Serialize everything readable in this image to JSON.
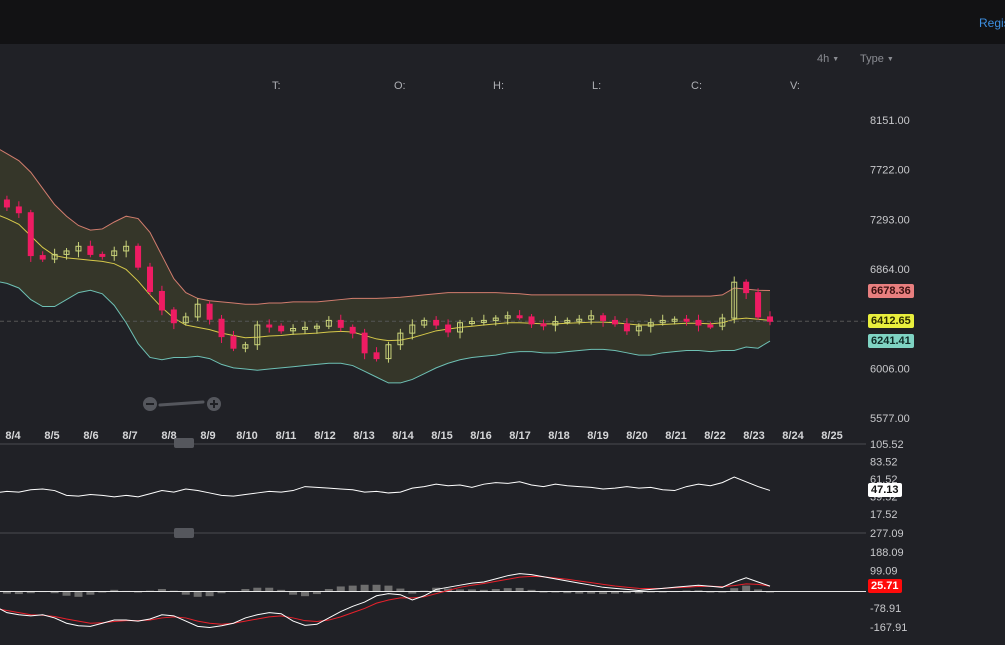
{
  "header": {
    "register_label": "Regis"
  },
  "toolbar": {
    "interval": "4h",
    "type_label": "Type"
  },
  "ohlc": {
    "t": "T:",
    "o": "O:",
    "h": "H:",
    "l": "L:",
    "c": "C:",
    "v": "V:"
  },
  "colors": {
    "up": "#c9d37a",
    "down": "#ee1c63",
    "band_fill": "#3a3a2a",
    "upper_band": "#d27d6e",
    "lower_band": "#6ec0b4",
    "mid_band": "#d6c94a",
    "rsi_line": "#ffffff",
    "macd_line": "#ffffff",
    "signal_line": "#e8212b",
    "histogram": "#6e6e6e"
  },
  "chart_data": [
    {
      "type": "candlestick",
      "x_labels": [
        "8/4",
        "8/5",
        "8/6",
        "8/7",
        "8/8",
        "8/9",
        "8/10",
        "8/11",
        "8/12",
        "8/13",
        "8/14",
        "8/15",
        "8/16",
        "8/17",
        "8/18",
        "8/19",
        "8/20",
        "8/21",
        "8/22",
        "8/23",
        "8/24",
        "8/25"
      ],
      "y_ticks": [
        "8151.00",
        "7722.00",
        "7293.00",
        "6864.00",
        "6006.00",
        "5577.00"
      ],
      "ylim": [
        5577,
        8151
      ],
      "close_series": [
        7460,
        7400,
        7350,
        6980,
        6950,
        6990,
        7020,
        7060,
        6990,
        6980,
        7020,
        7060,
        6880,
        6670,
        6510,
        6400,
        6450,
        6560,
        6430,
        6280,
        6180,
        6210,
        6380,
        6370,
        6330,
        6350,
        6360,
        6370,
        6420,
        6360,
        6310,
        6140,
        6090,
        6210,
        6310,
        6380,
        6420,
        6380,
        6320,
        6400,
        6410,
        6420,
        6440,
        6460,
        6450,
        6390,
        6380,
        6410,
        6420,
        6430,
        6460,
        6420,
        6390,
        6330,
        6370,
        6400,
        6420,
        6430,
        6420,
        6380,
        6370,
        6440,
        6750,
        6660,
        6450,
        6412.65
      ],
      "series": [
        {
          "name": "",
          "values": [
            7340,
            7300,
            7250,
            7150,
            7050,
            6980,
            6960,
            6950,
            6940,
            6930,
            6910,
            6860,
            6760,
            6640,
            6530,
            6440,
            6380,
            6360,
            6340,
            6310,
            6290,
            6270,
            6275,
            6285,
            6290,
            6300,
            6305,
            6310,
            6320,
            6325,
            6320,
            6290,
            6260,
            6245,
            6250,
            6270,
            6300,
            6330,
            6345,
            6360,
            6370,
            6380,
            6390,
            6400,
            6400,
            6395,
            6390,
            6390,
            6395,
            6400,
            6405,
            6405,
            6400,
            6390,
            6380,
            6380,
            6385,
            6390,
            6395,
            6395,
            6390,
            6400,
            6430,
            6440,
            6430,
            6420
          ]
        },
        {
          "name": "",
          "values": [
            7920,
            7860,
            7800,
            7700,
            7560,
            7420,
            7320,
            7240,
            7200,
            7210,
            7270,
            7320,
            7300,
            7180,
            6980,
            6780,
            6660,
            6610,
            6590,
            6580,
            6570,
            6560,
            6560,
            6570,
            6570,
            6580,
            6580,
            6580,
            6590,
            6600,
            6610,
            6610,
            6610,
            6615,
            6620,
            6630,
            6640,
            6650,
            6660,
            6660,
            6660,
            6660,
            6660,
            6655,
            6650,
            6640,
            6640,
            6640,
            6640,
            6640,
            6640,
            6640,
            6640,
            6640,
            6640,
            6635,
            6630,
            6630,
            6630,
            6630,
            6630,
            6640,
            6700,
            6690,
            6680,
            6678.36
          ]
        },
        {
          "name": "",
          "values": [
            6760,
            6740,
            6700,
            6600,
            6540,
            6540,
            6600,
            6660,
            6680,
            6650,
            6550,
            6400,
            6220,
            6100,
            6080,
            6100,
            6100,
            6110,
            6090,
            6040,
            6010,
            6000,
            5990,
            6000,
            6010,
            6020,
            6030,
            6040,
            6050,
            6050,
            6030,
            5980,
            5930,
            5880,
            5880,
            5910,
            5960,
            6010,
            6050,
            6080,
            6100,
            6110,
            6120,
            6140,
            6150,
            6150,
            6140,
            6140,
            6150,
            6160,
            6170,
            6170,
            6160,
            6140,
            6120,
            6120,
            6140,
            6150,
            6160,
            6160,
            6150,
            6160,
            6160,
            6190,
            6180,
            6241.41
          ]
        }
      ],
      "last_price": "6412.65",
      "upper_value": "6678.36",
      "lower_value": "6241.41"
    },
    {
      "type": "line",
      "y_ticks": [
        "105.52",
        "83.52",
        "61.52",
        "39.52",
        "17.52"
      ],
      "ylim": [
        17.52,
        105.52
      ],
      "series": [
        {
          "name": "",
          "values": [
            44,
            46,
            45,
            48,
            49,
            47,
            41,
            40,
            42,
            41,
            39,
            41,
            39,
            43,
            47,
            45,
            49,
            47,
            44,
            41,
            40,
            42,
            44,
            46,
            45,
            47,
            52,
            51,
            50,
            49,
            48,
            45,
            46,
            44,
            45,
            50,
            52,
            55,
            53,
            54,
            51,
            55,
            57,
            56,
            58,
            54,
            52,
            55,
            53,
            52,
            51,
            49,
            50,
            52,
            50,
            51,
            48,
            47,
            52,
            55,
            53,
            57,
            64,
            58,
            52,
            47.13
          ]
        }
      ],
      "last_value": "47.13"
    },
    {
      "type": "line",
      "y_ticks": [
        "277.09",
        "188.09",
        "99.09",
        "-78.91",
        "-167.91"
      ],
      "ylim": [
        -167.91,
        277.09
      ],
      "series": [
        {
          "name": "",
          "values": [
            -70,
            -100,
            -110,
            -115,
            -110,
            -125,
            -150,
            -162,
            -165,
            -150,
            -135,
            -135,
            -140,
            -130,
            -110,
            -115,
            -140,
            -165,
            -170,
            -162,
            -150,
            -125,
            -110,
            -100,
            -105,
            -140,
            -160,
            -155,
            -125,
            -95,
            -70,
            -50,
            -20,
            -10,
            -15,
            -40,
            -20,
            10,
            20,
            30,
            40,
            45,
            60,
            75,
            85,
            80,
            70,
            60,
            50,
            40,
            30,
            20,
            15,
            10,
            5,
            10,
            15,
            20,
            25,
            30,
            25,
            20,
            45,
            65,
            45,
            25.71
          ]
        },
        {
          "name": "",
          "values": [
            -80,
            -90,
            -100,
            -110,
            -112,
            -118,
            -130,
            -140,
            -150,
            -148,
            -142,
            -138,
            -138,
            -135,
            -125,
            -120,
            -125,
            -140,
            -150,
            -155,
            -150,
            -140,
            -130,
            -120,
            -115,
            -125,
            -138,
            -142,
            -135,
            -120,
            -100,
            -80,
            -55,
            -40,
            -30,
            -30,
            -25,
            -10,
            5,
            20,
            30,
            38,
            48,
            58,
            68,
            72,
            70,
            64,
            58,
            50,
            42,
            34,
            26,
            20,
            15,
            14,
            15,
            18,
            20,
            24,
            25,
            23,
            28,
            36,
            34,
            25.71
          ]
        },
        {
          "name": "",
          "values": [
            5,
            -10,
            -12,
            -8,
            2,
            -8,
            -20,
            -25,
            -15,
            -2,
            8,
            3,
            -3,
            4,
            12,
            4,
            -15,
            -25,
            -22,
            -8,
            2,
            12,
            18,
            18,
            8,
            -15,
            -22,
            -12,
            12,
            24,
            28,
            32,
            32,
            28,
            14,
            -10,
            4,
            18,
            14,
            10,
            10,
            8,
            12,
            16,
            17,
            8,
            0,
            -4,
            -8,
            -10,
            -10,
            -12,
            -10,
            -8,
            -9,
            -3,
            0,
            2,
            5,
            6,
            0,
            -3,
            16,
            28,
            10,
            -4
          ]
        }
      ],
      "last_value": "25.71"
    }
  ]
}
